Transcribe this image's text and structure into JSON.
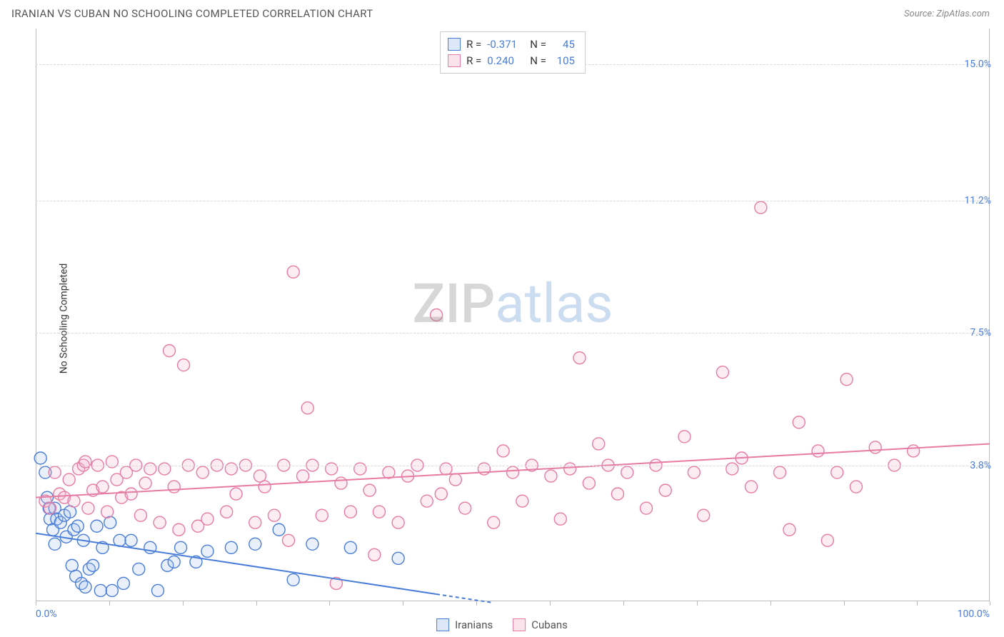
{
  "header": {
    "title": "IRANIAN VS CUBAN NO SCHOOLING COMPLETED CORRELATION CHART",
    "source": "Source: ZipAtlas.com"
  },
  "ylabel": "No Schooling Completed",
  "watermark": {
    "part1": "ZIP",
    "part2": "atlas"
  },
  "chart": {
    "type": "scatter",
    "xlim": [
      0,
      100
    ],
    "ylim": [
      0,
      16
    ],
    "x_ticks_minor": [
      0,
      7.7,
      15.4,
      23.1,
      30.8,
      38.5,
      46.2,
      53.9,
      61.6,
      69.3,
      77,
      84.7,
      92.4,
      100
    ],
    "x_tick_labels": [
      {
        "pos": 0,
        "text": "0.0%"
      },
      {
        "pos": 100,
        "text": "100.0%"
      }
    ],
    "y_grid": [
      {
        "val": 3.8,
        "label": "3.8%"
      },
      {
        "val": 7.5,
        "label": "7.5%"
      },
      {
        "val": 11.2,
        "label": "11.2%"
      },
      {
        "val": 15.0,
        "label": "15.0%"
      }
    ],
    "grid_color": "#d8d8d8",
    "background_color": "#ffffff",
    "marker_radius": 8.5,
    "marker_stroke_width": 1.4,
    "marker_fill_opacity": 0.25,
    "line_width": 2,
    "series": [
      {
        "name": "Iranians",
        "color_stroke": "#4a7dd8",
        "color_fill": "#a8c3ec",
        "R": "-0.371",
        "N": "45",
        "trend": {
          "x1": 0,
          "y1": 1.9,
          "x2": 42,
          "y2": 0.2,
          "x_dash_end": 48
        },
        "points": [
          [
            0.5,
            4.0
          ],
          [
            1.0,
            3.6
          ],
          [
            1.2,
            2.9
          ],
          [
            1.4,
            2.6
          ],
          [
            1.5,
            2.3
          ],
          [
            1.8,
            2.0
          ],
          [
            2.0,
            2.6
          ],
          [
            2.0,
            1.6
          ],
          [
            2.2,
            2.3
          ],
          [
            2.6,
            2.2
          ],
          [
            3.0,
            2.4
          ],
          [
            3.2,
            1.8
          ],
          [
            3.6,
            2.5
          ],
          [
            3.8,
            1.0
          ],
          [
            4.0,
            2.0
          ],
          [
            4.2,
            0.7
          ],
          [
            4.4,
            2.1
          ],
          [
            4.8,
            0.5
          ],
          [
            5.0,
            1.7
          ],
          [
            5.2,
            0.4
          ],
          [
            5.6,
            0.9
          ],
          [
            6.0,
            1.0
          ],
          [
            6.4,
            2.1
          ],
          [
            6.8,
            0.3
          ],
          [
            7.0,
            1.5
          ],
          [
            7.8,
            2.2
          ],
          [
            8.0,
            0.3
          ],
          [
            8.8,
            1.7
          ],
          [
            9.2,
            0.5
          ],
          [
            10,
            1.7
          ],
          [
            10.8,
            0.9
          ],
          [
            12,
            1.5
          ],
          [
            12.8,
            0.3
          ],
          [
            13.8,
            1.0
          ],
          [
            14.5,
            1.1
          ],
          [
            15.2,
            1.5
          ],
          [
            16.8,
            1.1
          ],
          [
            18,
            1.4
          ],
          [
            20.5,
            1.5
          ],
          [
            23,
            1.6
          ],
          [
            25.5,
            2.0
          ],
          [
            27,
            0.6
          ],
          [
            29,
            1.6
          ],
          [
            33,
            1.5
          ],
          [
            38,
            1.2
          ]
        ]
      },
      {
        "name": "Cubans",
        "color_stroke": "#e67ba3",
        "color_fill": "#f4b8ce",
        "R": "0.240",
        "N": "105",
        "trend": {
          "x1": 0,
          "y1": 2.9,
          "x2": 100,
          "y2": 4.4
        },
        "points": [
          [
            1,
            2.8
          ],
          [
            1.5,
            2.6
          ],
          [
            2,
            3.6
          ],
          [
            2.5,
            3.0
          ],
          [
            3,
            2.9
          ],
          [
            3.5,
            3.4
          ],
          [
            4,
            2.8
          ],
          [
            4.5,
            3.7
          ],
          [
            5,
            3.8
          ],
          [
            5.2,
            3.9
          ],
          [
            5.5,
            2.6
          ],
          [
            6,
            3.1
          ],
          [
            6.5,
            3.8
          ],
          [
            7,
            3.2
          ],
          [
            7.5,
            2.5
          ],
          [
            8,
            3.9
          ],
          [
            8.5,
            3.4
          ],
          [
            9,
            2.9
          ],
          [
            9.5,
            3.6
          ],
          [
            10,
            3.0
          ],
          [
            10.5,
            3.8
          ],
          [
            11,
            2.4
          ],
          [
            11.5,
            3.3
          ],
          [
            12,
            3.7
          ],
          [
            13,
            2.2
          ],
          [
            13.5,
            3.7
          ],
          [
            14,
            7.0
          ],
          [
            14.5,
            3.2
          ],
          [
            15,
            2.0
          ],
          [
            15.5,
            6.6
          ],
          [
            16,
            3.8
          ],
          [
            17,
            2.1
          ],
          [
            17.5,
            3.6
          ],
          [
            18,
            2.3
          ],
          [
            19,
            3.8
          ],
          [
            20,
            2.5
          ],
          [
            20.5,
            3.7
          ],
          [
            21,
            3.0
          ],
          [
            22,
            3.8
          ],
          [
            23,
            2.2
          ],
          [
            23.5,
            3.5
          ],
          [
            24,
            3.2
          ],
          [
            25,
            2.4
          ],
          [
            26,
            3.8
          ],
          [
            26.5,
            1.7
          ],
          [
            27,
            9.2
          ],
          [
            28,
            3.5
          ],
          [
            28.5,
            5.4
          ],
          [
            29,
            3.8
          ],
          [
            30,
            2.4
          ],
          [
            31,
            3.7
          ],
          [
            31.5,
            0.5
          ],
          [
            32,
            3.3
          ],
          [
            33,
            2.5
          ],
          [
            34,
            3.7
          ],
          [
            35,
            3.1
          ],
          [
            35.5,
            1.3
          ],
          [
            36,
            2.5
          ],
          [
            37,
            3.6
          ],
          [
            38,
            2.2
          ],
          [
            39,
            3.5
          ],
          [
            40,
            3.8
          ],
          [
            41,
            2.8
          ],
          [
            42,
            8.0
          ],
          [
            42.5,
            3.0
          ],
          [
            43,
            3.7
          ],
          [
            44,
            3.4
          ],
          [
            45,
            2.6
          ],
          [
            47,
            3.7
          ],
          [
            48,
            2.2
          ],
          [
            49,
            4.2
          ],
          [
            50,
            3.6
          ],
          [
            51,
            2.8
          ],
          [
            52,
            3.8
          ],
          [
            54,
            3.5
          ],
          [
            55,
            2.3
          ],
          [
            56,
            3.7
          ],
          [
            57,
            6.8
          ],
          [
            58,
            3.3
          ],
          [
            59,
            4.4
          ],
          [
            60,
            3.8
          ],
          [
            61,
            3.0
          ],
          [
            62,
            3.6
          ],
          [
            64,
            2.6
          ],
          [
            65,
            3.8
          ],
          [
            66,
            3.1
          ],
          [
            68,
            4.6
          ],
          [
            69,
            3.6
          ],
          [
            70,
            2.4
          ],
          [
            72,
            6.4
          ],
          [
            73,
            3.7
          ],
          [
            74,
            4.0
          ],
          [
            75,
            3.2
          ],
          [
            76,
            11.0
          ],
          [
            78,
            3.6
          ],
          [
            79,
            2.0
          ],
          [
            80,
            5.0
          ],
          [
            82,
            4.2
          ],
          [
            83,
            1.7
          ],
          [
            84,
            3.6
          ],
          [
            85,
            6.2
          ],
          [
            86,
            3.2
          ],
          [
            88,
            4.3
          ],
          [
            90,
            3.8
          ],
          [
            92,
            4.2
          ]
        ]
      }
    ]
  },
  "legend": {
    "items": [
      {
        "label": "Iranians"
      },
      {
        "label": "Cubans"
      }
    ]
  }
}
